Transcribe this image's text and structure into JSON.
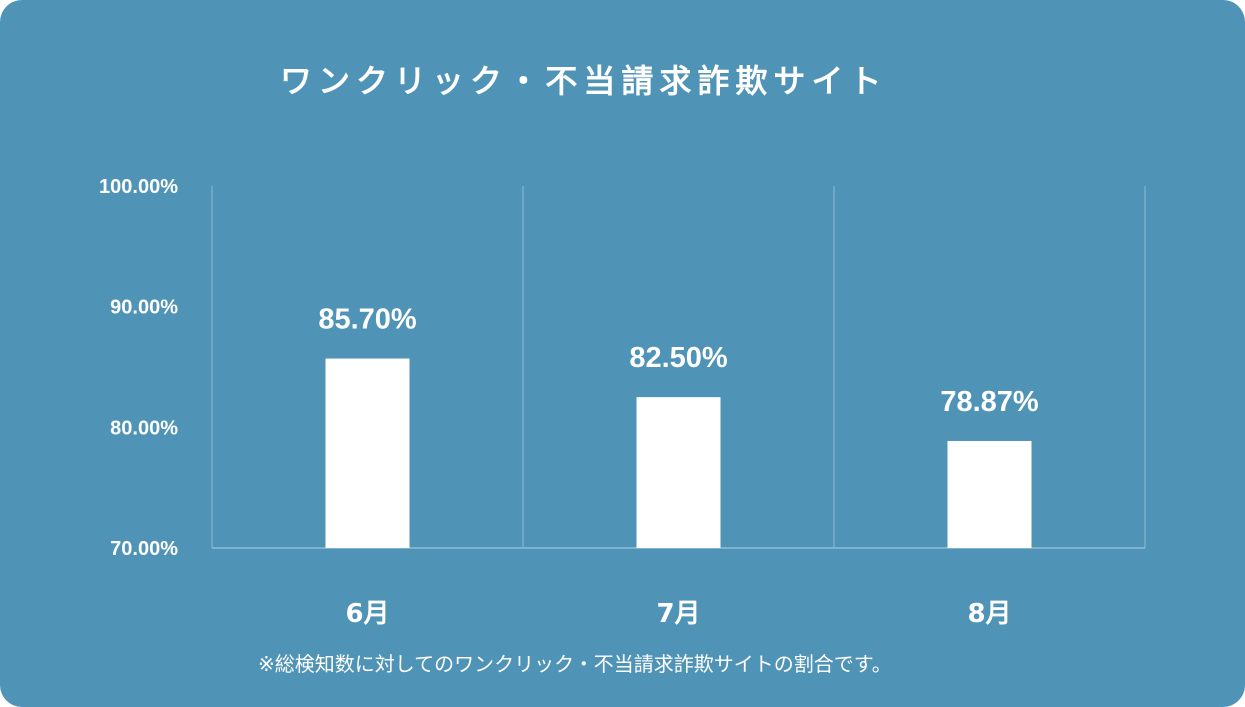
{
  "title": "ワンクリック・不当請求詐欺サイト",
  "footnote": "※総検知数に対してのワンクリック・不当請求詐欺サイトの割合です。",
  "colors": {
    "background": "#4f93b6",
    "bar": "#ffffff",
    "gridline": "#8dbdd6",
    "text": "#ffffff"
  },
  "chart_data": {
    "type": "bar",
    "categories": [
      "6月",
      "7月",
      "8月"
    ],
    "values": [
      85.7,
      82.5,
      78.87
    ],
    "value_labels": [
      "85.70%",
      "82.50%",
      "78.87%"
    ],
    "y_ticks": [
      "70.00%",
      "80.00%",
      "90.00%",
      "100.00%"
    ],
    "ylim": [
      70,
      100
    ],
    "grid": "vertical separators",
    "legend": "none"
  }
}
